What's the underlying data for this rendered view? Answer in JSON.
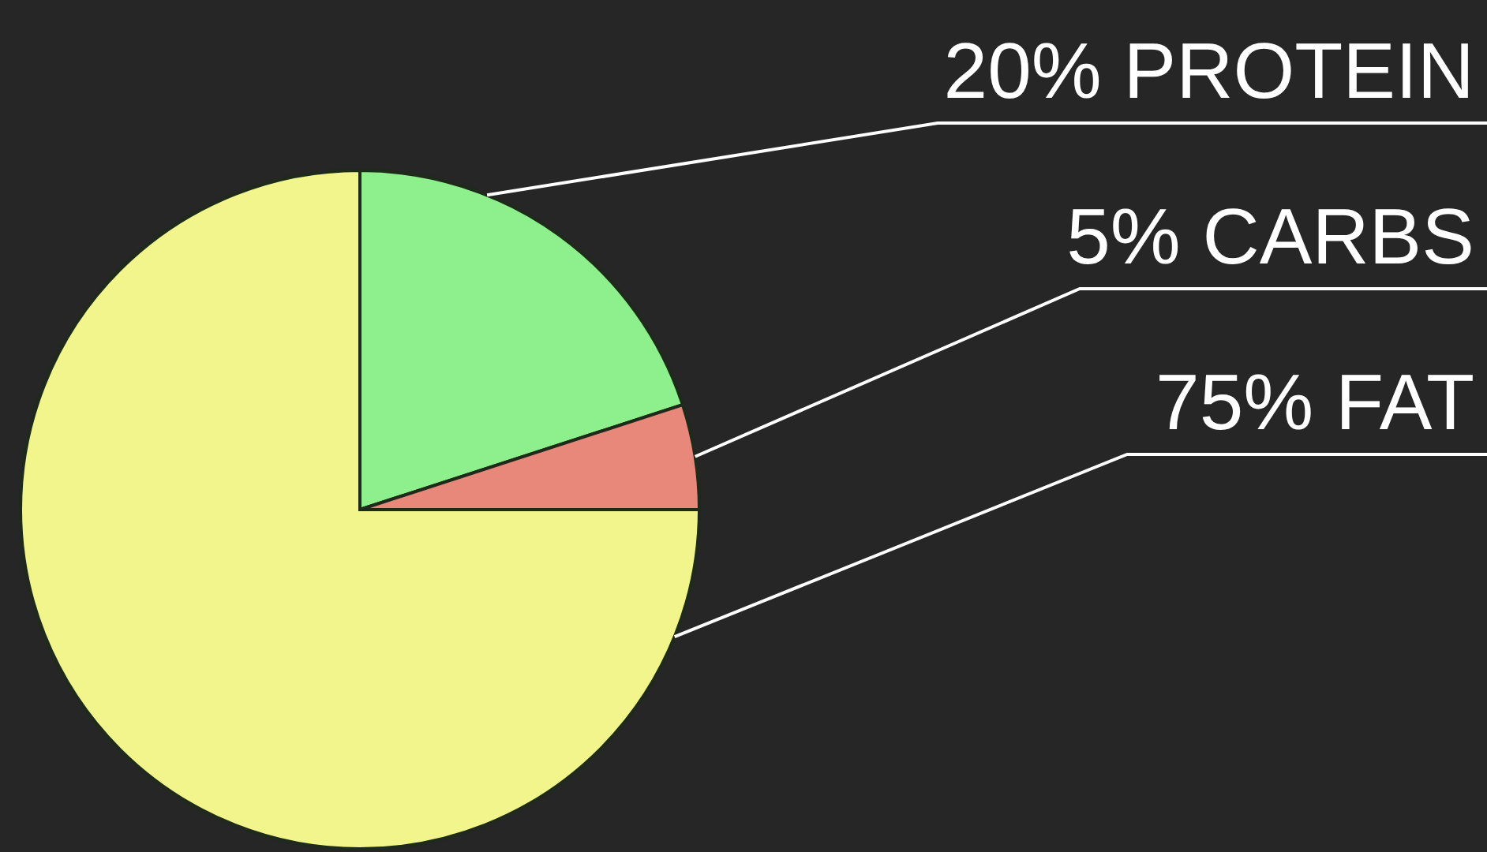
{
  "chart_data": {
    "type": "pie",
    "categories": [
      "PROTEIN",
      "CARBS",
      "FAT"
    ],
    "values": [
      20,
      5,
      75
    ],
    "value_labels": [
      "20%",
      "5%",
      "75%"
    ],
    "colors": [
      "#8ef08c",
      "#e8887a",
      "#f1f58c"
    ]
  }
}
